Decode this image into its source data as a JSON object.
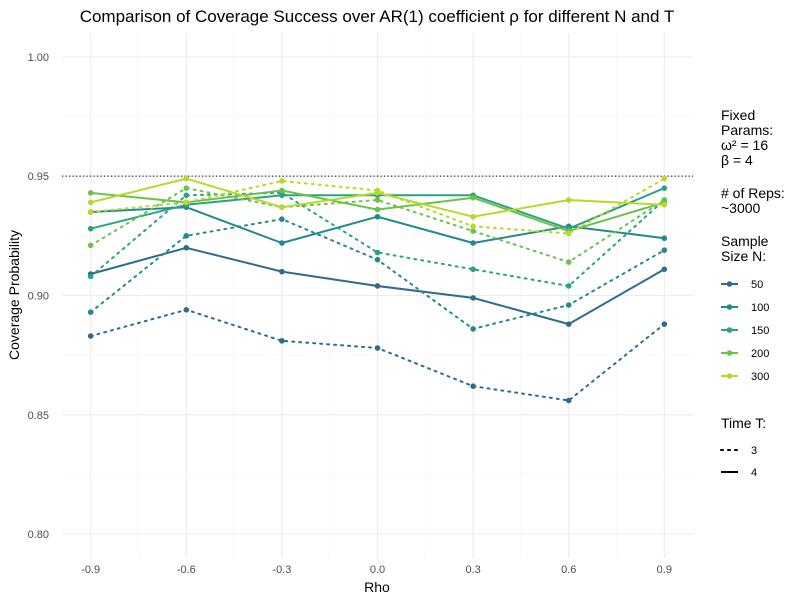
{
  "chart_data": {
    "type": "line",
    "title": "Comparison of Coverage Success over AR(1) coefficient ρ for different N and T",
    "xlabel": "Rho",
    "ylabel": "Coverage Probability",
    "x": [
      -0.9,
      -0.6,
      -0.3,
      0.0,
      0.3,
      0.6,
      0.9
    ],
    "x_tick_labels": [
      "-0.9",
      "-0.6",
      "-0.3",
      "0.0",
      "0.3",
      "0.6",
      "0.9"
    ],
    "xlim": [
      -0.99,
      0.99
    ],
    "ylim": [
      0.79,
      1.01
    ],
    "y_ticks": [
      0.8,
      0.85,
      0.9,
      0.95,
      1.0
    ],
    "y_tick_labels": [
      "0.80",
      "0.85",
      "0.90",
      "0.95",
      "1.00"
    ],
    "reference_line": {
      "y": 0.95,
      "style": "dotted",
      "color": "#000000"
    },
    "grid": true,
    "legend_placement": "right",
    "legend": {
      "fixed_params_lines": [
        "Fixed",
        "Params:",
        "ω² = 16",
        "β = 4"
      ],
      "reps_lines": [
        "# of Reps:",
        "~3000"
      ],
      "size_title_lines": [
        "Sample",
        "Size N:"
      ],
      "sizes": [
        {
          "label": "50",
          "color": "#2f6b8e"
        },
        {
          "label": "100",
          "color": "#23898e"
        },
        {
          "label": "150",
          "color": "#2aa382"
        },
        {
          "label": "200",
          "color": "#6cc14c"
        },
        {
          "label": "300",
          "color": "#b8d82a"
        }
      ],
      "time_title": "Time T:",
      "times": [
        {
          "label": "3",
          "linetype": "dotted"
        },
        {
          "label": "4",
          "linetype": "solid"
        }
      ]
    },
    "series": [
      {
        "N": "50",
        "T": "3",
        "color": "#2f6b8e",
        "dash": "dotted",
        "values": [
          0.883,
          0.894,
          0.881,
          0.878,
          0.862,
          0.856,
          0.888
        ]
      },
      {
        "N": "50",
        "T": "4",
        "color": "#2f6b8e",
        "dash": "solid",
        "values": [
          0.909,
          0.92,
          0.91,
          0.904,
          0.899,
          0.888,
          0.911
        ]
      },
      {
        "N": "100",
        "T": "3",
        "color": "#23898e",
        "dash": "dotted",
        "values": [
          0.893,
          0.925,
          0.932,
          0.915,
          0.886,
          0.896,
          0.919
        ]
      },
      {
        "N": "100",
        "T": "4",
        "color": "#23898e",
        "dash": "solid",
        "values": [
          0.935,
          0.937,
          0.922,
          0.933,
          0.922,
          0.929,
          0.924
        ]
      },
      {
        "N": "150",
        "T": "3",
        "color": "#2aa382",
        "dash": "dotted",
        "values": [
          0.908,
          0.942,
          0.943,
          0.918,
          0.911,
          0.904,
          0.94
        ]
      },
      {
        "N": "150",
        "T": "4",
        "color": "#2aa382",
        "dash": "solid",
        "values": [
          0.928,
          0.938,
          0.942,
          0.942,
          0.942,
          0.928,
          0.945
        ]
      },
      {
        "N": "200",
        "T": "3",
        "color": "#6cc14c",
        "dash": "dotted",
        "values": [
          0.921,
          0.945,
          0.937,
          0.94,
          0.927,
          0.914,
          0.94
        ]
      },
      {
        "N": "200",
        "T": "4",
        "color": "#6cc14c",
        "dash": "solid",
        "values": [
          0.943,
          0.939,
          0.944,
          0.936,
          0.941,
          0.927,
          0.939
        ]
      },
      {
        "N": "300",
        "T": "3",
        "color": "#b8d82a",
        "dash": "dotted",
        "values": [
          0.935,
          0.939,
          0.948,
          0.944,
          0.929,
          0.926,
          0.949
        ]
      },
      {
        "N": "300",
        "T": "4",
        "color": "#b8d82a",
        "dash": "solid",
        "values": [
          0.939,
          0.949,
          0.937,
          0.943,
          0.933,
          0.94,
          0.938
        ]
      }
    ]
  }
}
